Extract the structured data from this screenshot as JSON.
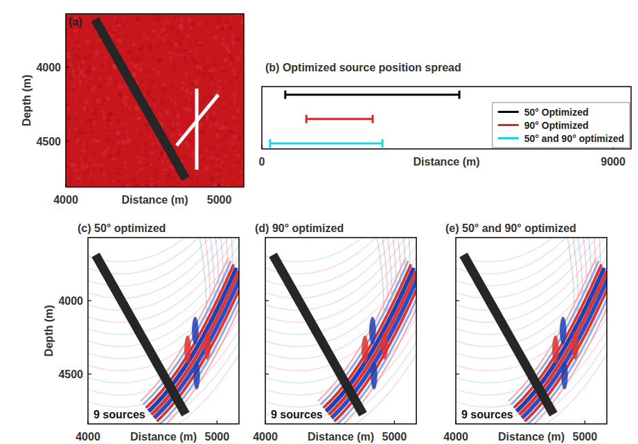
{
  "chart_data": [
    {
      "type": "image",
      "title": "(a)",
      "xlabel": "Distance (m)",
      "ylabel": "Depth (m)",
      "xlim": [
        4000,
        5160
      ],
      "ylim": [
        4810,
        3640
      ],
      "xticks": [
        4000,
        5000
      ],
      "yticks": [
        4000,
        4500
      ],
      "color": "#c8161d",
      "series": [
        {
          "color": "#262626",
          "x": [
            4190,
            4781
          ],
          "values": [
            3677,
            4754
          ]
        },
        {
          "color": "#ffffff",
          "x": [
            4853,
            4853
          ],
          "values": [
            4145,
            4693
          ]
        },
        {
          "color": "#ffffff",
          "x": [
            4722,
            4993
          ],
          "values": [
            4529,
            4187
          ]
        }
      ]
    },
    {
      "type": "range",
      "title": "(b) Optimized source position spread",
      "xlabel": "Distance (m)",
      "xlim": [
        0,
        9460
      ],
      "xticks": [
        0,
        9000
      ],
      "tick_labels": "x",
      "legend": "lower right",
      "series": [
        {
          "name": "50° Optimized",
          "color": "#000000",
          "values": [
            600,
            5060
          ]
        },
        {
          "name": "90° Optimized",
          "color": "#d62728",
          "values": [
            1140,
            2840
          ]
        },
        {
          "name": "50° and 90° optimized",
          "color": "#17d4e6",
          "values": [
            210,
            3090
          ]
        }
      ]
    },
    {
      "type": "image",
      "title": "(c) 50° optimized",
      "xlabel": "Distance (m)",
      "ylabel": "Depth (m)",
      "annotation": "9 sources",
      "xlim": [
        4000,
        5170
      ],
      "ylim": [
        4840,
        3570
      ],
      "xticks": [
        4000,
        5000
      ],
      "yticks": [
        4000,
        4500
      ],
      "series": [
        {
          "color": "#262626",
          "x": [
            4059,
            4757
          ],
          "values": [
            3688,
            4774
          ]
        }
      ]
    },
    {
      "type": "image",
      "title": "(d) 90° optimized",
      "xlabel": "Distance (m)",
      "annotation": "9 sources",
      "tick_labels": "x",
      "xlim": [
        4000,
        5170
      ],
      "ylim": [
        4840,
        3570
      ],
      "xticks": [
        4000,
        5000
      ],
      "yticks": [
        4000,
        4500
      ],
      "series": [
        {
          "color": "#262626",
          "x": [
            4059,
            4757
          ],
          "values": [
            3688,
            4774
          ]
        }
      ]
    },
    {
      "type": "image",
      "title": "(e) 50° and 90° optimized",
      "xlabel": "Distance (m)",
      "annotation": "9 sources",
      "tick_labels": "x",
      "xlim": [
        4000,
        5170
      ],
      "ylim": [
        4840,
        3570
      ],
      "xticks": [
        4000,
        5000
      ],
      "yticks": [
        4000,
        4500
      ],
      "series": [
        {
          "color": "#262626",
          "x": [
            4059,
            4757
          ],
          "values": [
            3688,
            4774
          ]
        }
      ]
    }
  ]
}
